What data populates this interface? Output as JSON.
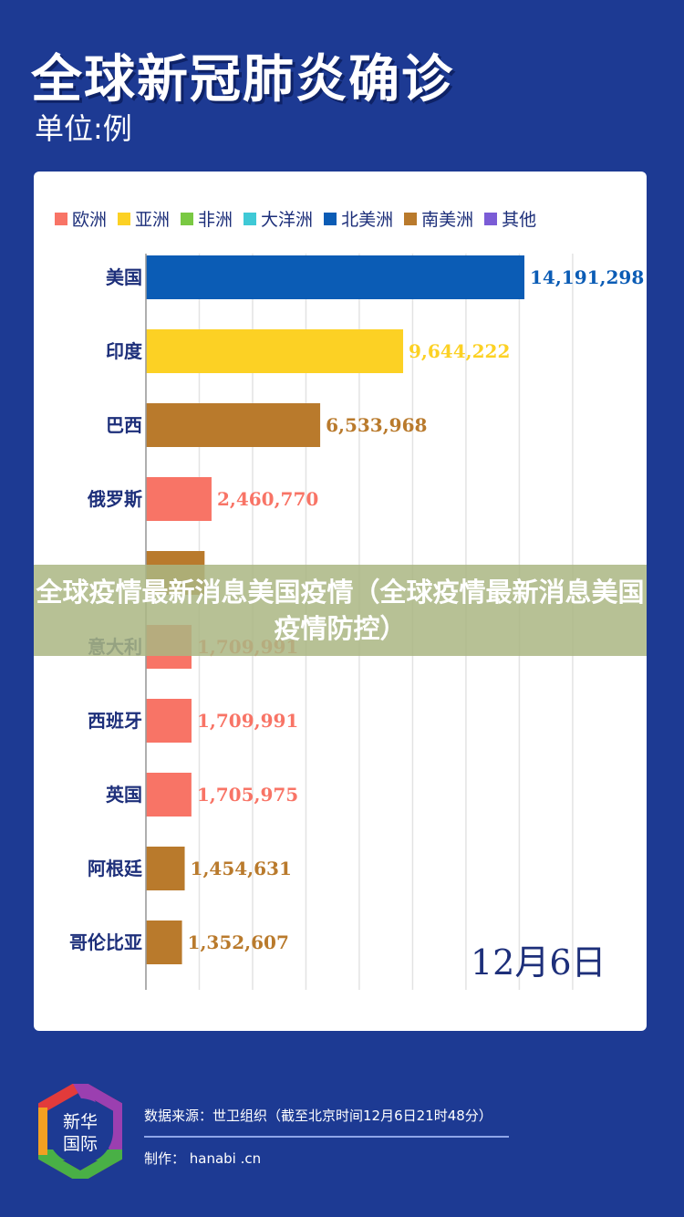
{
  "title": "全球新冠肺炎确诊",
  "unit": "单位:例",
  "banner": "全球疫情最新消息美国疫情（全球疫情最新消息美国疫情防控）",
  "date": "12月6日",
  "footer": {
    "source": "数据来源：世卫组织（截至北京时间12月6日21时48分）",
    "maker": "制作： hanabi  .cn",
    "logo_text": "新华国际"
  },
  "chart_data": {
    "type": "bar",
    "orientation": "horizontal",
    "legend": [
      {
        "name": "欧洲",
        "color": "#f87466"
      },
      {
        "name": "亚洲",
        "color": "#fcd124"
      },
      {
        "name": "非洲",
        "color": "#7ac943"
      },
      {
        "name": "大洋洲",
        "color": "#3fc9d6"
      },
      {
        "name": "北美洲",
        "color": "#0b5cb5"
      },
      {
        "name": "南美洲",
        "color": "#b97a2c"
      },
      {
        "name": "其他",
        "color": "#7b5cd6"
      }
    ],
    "categories": [
      "美国",
      "印度",
      "巴西",
      "俄罗斯",
      "",
      "意大利",
      "西班牙",
      "英国",
      "阿根廷",
      "哥伦比亚"
    ],
    "values": [
      14191298,
      9644222,
      6533968,
      2460770,
      null,
      1709991,
      1709991,
      1705975,
      1454631,
      1352607
    ],
    "labels": [
      "14,191,298",
      "9,644,222",
      "6,533,968",
      "2,460,770",
      "",
      "1,709,991",
      "1,709,991",
      "1,705,975",
      "1,454,631",
      "1,352,607"
    ],
    "regions": [
      "北美洲",
      "亚洲",
      "南美洲",
      "欧洲",
      "南美洲",
      "欧洲",
      "欧洲",
      "欧洲",
      "南美洲",
      "南美洲"
    ],
    "xlim": [
      0,
      16000000
    ],
    "grid": true
  }
}
